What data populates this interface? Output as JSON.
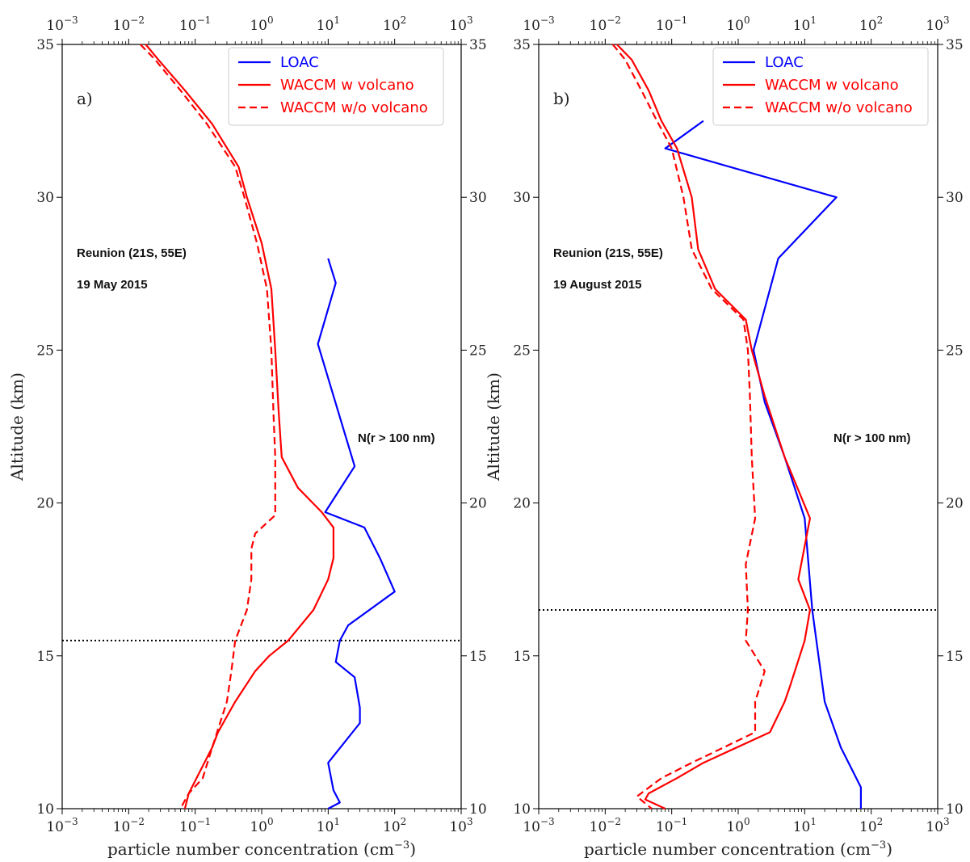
{
  "chart_data": [
    {
      "type": "line",
      "panel_label": "a)",
      "xlabel": "particle number concentration (cm",
      "xlabel_sup": "−3",
      "xlabel_close": ")",
      "ylabel": "Altitude (km)",
      "xscale": "log",
      "xlim": [
        0.001,
        1000
      ],
      "ylim": [
        10,
        35
      ],
      "x_ticks": [
        {
          "mant": "10",
          "exp": "−3"
        },
        {
          "mant": "10",
          "exp": "−2"
        },
        {
          "mant": "10",
          "exp": "−1"
        },
        {
          "mant": "10",
          "exp": "0"
        },
        {
          "mant": "10",
          "exp": "1"
        },
        {
          "mant": "10",
          "exp": "2"
        },
        {
          "mant": "10",
          "exp": "3"
        }
      ],
      "y_ticks": [
        "10",
        "15",
        "20",
        "25",
        "30",
        "35"
      ],
      "annotations": [
        "Reunion (21S, 55E)",
        "19 May 2015",
        "N(r > 100 nm)"
      ],
      "hline_altitude": 15.5,
      "legend_position": "top-right",
      "series": [
        {
          "name": "LOAC",
          "color": "#0000ff",
          "style": "solid",
          "points": [
            [
              10,
              28
            ],
            [
              13,
              27.2
            ],
            [
              7,
              25.2
            ],
            [
              25,
              21.2
            ],
            [
              9,
              19.7
            ],
            [
              35,
              19.2
            ],
            [
              60,
              18.2
            ],
            [
              100,
              17.1
            ],
            [
              20,
              16
            ],
            [
              15,
              15.5
            ],
            [
              13,
              14.8
            ],
            [
              25,
              14.3
            ],
            [
              30,
              13.3
            ],
            [
              30,
              12.8
            ],
            [
              10,
              11.5
            ],
            [
              12,
              10.6
            ],
            [
              15,
              10.2
            ],
            [
              10,
              10
            ]
          ]
        },
        {
          "name": "WACCM w volcano",
          "color": "#ff0000",
          "style": "solid",
          "points": [
            [
              0.018,
              35
            ],
            [
              0.028,
              34.5
            ],
            [
              0.07,
              33.5
            ],
            [
              0.18,
              32.4
            ],
            [
              0.45,
              31
            ],
            [
              0.6,
              30
            ],
            [
              1.0,
              28.5
            ],
            [
              1.4,
              27
            ],
            [
              1.6,
              25
            ],
            [
              1.8,
              23
            ],
            [
              2,
              21.5
            ],
            [
              3.5,
              20.5
            ],
            [
              8,
              19.7
            ],
            [
              12,
              19.2
            ],
            [
              12,
              18.2
            ],
            [
              10,
              17.5
            ],
            [
              6,
              16.5
            ],
            [
              2.5,
              15.5
            ],
            [
              1.3,
              15
            ],
            [
              0.8,
              14.5
            ],
            [
              0.4,
              13.5
            ],
            [
              0.22,
              12.5
            ],
            [
              0.18,
              12
            ],
            [
              0.08,
              10.5
            ],
            [
              0.07,
              10
            ]
          ]
        },
        {
          "name": "WACCM w/o volcano",
          "color": "#ff0000",
          "style": "dashed",
          "points": [
            [
              0.015,
              35
            ],
            [
              0.025,
              34.5
            ],
            [
              0.06,
              33.5
            ],
            [
              0.15,
              32.4
            ],
            [
              0.4,
              31
            ],
            [
              0.55,
              30
            ],
            [
              0.85,
              28.5
            ],
            [
              1.2,
              27
            ],
            [
              1.4,
              25
            ],
            [
              1.5,
              23
            ],
            [
              1.6,
              21.5
            ],
            [
              1.6,
              19.6
            ],
            [
              0.8,
              19
            ],
            [
              0.7,
              18.5
            ],
            [
              0.7,
              17.5
            ],
            [
              0.6,
              16.5
            ],
            [
              0.4,
              15.5
            ],
            [
              0.35,
              14.5
            ],
            [
              0.3,
              13.5
            ],
            [
              0.18,
              12
            ],
            [
              0.13,
              11
            ],
            [
              0.08,
              10.5
            ],
            [
              0.06,
              10
            ]
          ]
        }
      ]
    },
    {
      "type": "line",
      "panel_label": "b)",
      "xlabel": "particle number concentration (cm",
      "xlabel_sup": "−3",
      "xlabel_close": ")",
      "ylabel": "Altitude (km)",
      "xscale": "log",
      "xlim": [
        0.001,
        1000
      ],
      "ylim": [
        10,
        35
      ],
      "x_ticks": [
        {
          "mant": "10",
          "exp": "−3"
        },
        {
          "mant": "10",
          "exp": "−2"
        },
        {
          "mant": "10",
          "exp": "−1"
        },
        {
          "mant": "10",
          "exp": "0"
        },
        {
          "mant": "10",
          "exp": "1"
        },
        {
          "mant": "10",
          "exp": "2"
        },
        {
          "mant": "10",
          "exp": "3"
        }
      ],
      "y_ticks": [
        "10",
        "15",
        "20",
        "25",
        "30",
        "35"
      ],
      "annotations": [
        "Reunion (21S, 55E)",
        "19 August 2015",
        "N(r > 100 nm)"
      ],
      "hline_altitude": 16.5,
      "legend_position": "top-right",
      "series": [
        {
          "name": "LOAC",
          "color": "#0000ff",
          "style": "solid",
          "points": [
            [
              0.3,
              32.5
            ],
            [
              0.08,
              31.6
            ],
            [
              30,
              30
            ],
            [
              4,
              28
            ],
            [
              1.7,
              25
            ],
            [
              2.5,
              23.3
            ],
            [
              5,
              21.5
            ],
            [
              10,
              19.5
            ],
            [
              13,
              16.5
            ],
            [
              15,
              15.5
            ],
            [
              20,
              13.5
            ],
            [
              35,
              12
            ],
            [
              70,
              10.7
            ],
            [
              70,
              10
            ]
          ]
        },
        {
          "name": "WACCM w volcano",
          "color": "#ff0000",
          "style": "solid",
          "points": [
            [
              0.015,
              35
            ],
            [
              0.025,
              34.5
            ],
            [
              0.045,
              33.5
            ],
            [
              0.07,
              32.5
            ],
            [
              0.12,
              31.6
            ],
            [
              0.2,
              30
            ],
            [
              0.25,
              28.3
            ],
            [
              0.45,
              27
            ],
            [
              1.3,
              26
            ],
            [
              1.6,
              25
            ],
            [
              2.5,
              23.5
            ],
            [
              5,
              21.5
            ],
            [
              12,
              19.5
            ],
            [
              8,
              17.5
            ],
            [
              12,
              16.5
            ],
            [
              10,
              15.5
            ],
            [
              6,
              14
            ],
            [
              5,
              13.5
            ],
            [
              3,
              12.5
            ],
            [
              0.3,
              11.5
            ],
            [
              0.12,
              11
            ],
            [
              0.045,
              10.5
            ],
            [
              0.04,
              10.3
            ],
            [
              0.08,
              10
            ]
          ]
        },
        {
          "name": "WACCM w/o volcano",
          "color": "#ff0000",
          "style": "dashed",
          "points": [
            [
              0.013,
              35
            ],
            [
              0.02,
              34.5
            ],
            [
              0.035,
              33.5
            ],
            [
              0.06,
              32.5
            ],
            [
              0.1,
              31.6
            ],
            [
              0.15,
              30
            ],
            [
              0.2,
              28.3
            ],
            [
              0.4,
              27
            ],
            [
              1.2,
              26
            ],
            [
              1.4,
              25
            ],
            [
              1.5,
              23.5
            ],
            [
              1.6,
              21.5
            ],
            [
              1.8,
              19.5
            ],
            [
              1.3,
              18
            ],
            [
              1.4,
              16.5
            ],
            [
              1.3,
              15.5
            ],
            [
              2.5,
              14.5
            ],
            [
              1.8,
              13.5
            ],
            [
              1.8,
              12.5
            ],
            [
              0.2,
              11.5
            ],
            [
              0.07,
              11
            ],
            [
              0.03,
              10.4
            ],
            [
              0.05,
              10
            ]
          ]
        }
      ]
    }
  ]
}
